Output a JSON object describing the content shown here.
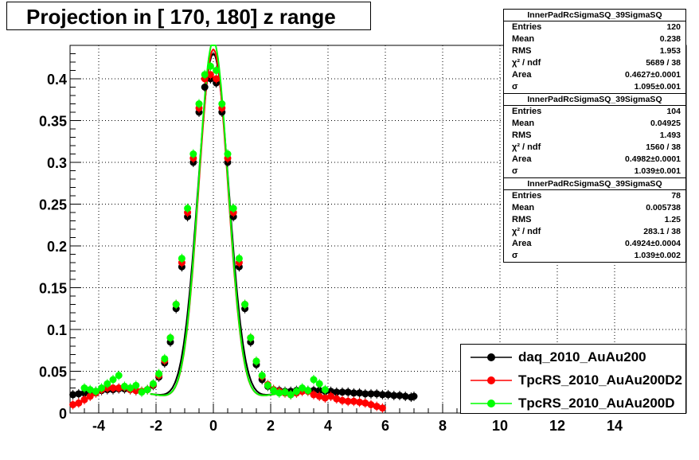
{
  "chart_data": {
    "type": "scatter",
    "title": "Projection in [ 170, 180] z range",
    "xlim": [
      -5,
      16.5
    ],
    "ylim": [
      0,
      0.44
    ],
    "x_major_ticks": [
      -4,
      -2,
      0,
      2,
      4,
      6,
      8,
      10,
      12,
      14
    ],
    "x_tick_labels": [
      "-4",
      "-2",
      "0",
      "2",
      "4",
      "6",
      "8",
      "10",
      "12",
      "14"
    ],
    "y_major_ticks": [
      0,
      0.05,
      0.1,
      0.15,
      0.2,
      0.25,
      0.3,
      0.35,
      0.4
    ],
    "y_tick_labels": [
      "0",
      "0.05",
      "0.1",
      "0.15",
      "0.2",
      "0.25",
      "0.3",
      "0.35",
      "0.4"
    ],
    "grid": true,
    "legend_position": "bottom-right",
    "series": [
      {
        "name": "daq_2010_AuAu200",
        "color": "#000000",
        "x": [
          -4.9,
          -4.7,
          -4.5,
          -4.3,
          -4.1,
          -3.9,
          -3.7,
          -3.5,
          -3.3,
          -3.1,
          -2.9,
          -2.7,
          -2.5,
          -2.3,
          -2.1,
          -1.9,
          -1.7,
          -1.5,
          -1.3,
          -1.1,
          -0.9,
          -0.7,
          -0.5,
          -0.3,
          -0.1,
          0.1,
          0.3,
          0.5,
          0.7,
          0.9,
          1.1,
          1.3,
          1.5,
          1.7,
          1.9,
          2.1,
          2.3,
          2.5,
          2.7,
          2.9,
          3.1,
          3.3,
          3.5,
          3.7,
          3.9,
          4.1,
          4.3,
          4.5,
          4.7,
          4.9,
          5.1,
          5.3,
          5.5,
          5.7,
          5.9,
          6.1,
          6.3,
          6.5,
          6.7,
          6.9,
          7.0
        ],
        "y": [
          0.022,
          0.023,
          0.024,
          0.025,
          0.026,
          0.027,
          0.028,
          0.028,
          0.029,
          0.029,
          0.028,
          0.027,
          0.026,
          0.028,
          0.033,
          0.043,
          0.06,
          0.085,
          0.125,
          0.175,
          0.235,
          0.3,
          0.36,
          0.39,
          0.4,
          0.395,
          0.36,
          0.3,
          0.235,
          0.175,
          0.125,
          0.085,
          0.058,
          0.04,
          0.032,
          0.028,
          0.027,
          0.026,
          0.026,
          0.027,
          0.027,
          0.027,
          0.027,
          0.027,
          0.026,
          0.026,
          0.025,
          0.025,
          0.025,
          0.024,
          0.024,
          0.023,
          0.023,
          0.023,
          0.022,
          0.022,
          0.021,
          0.021,
          0.02,
          0.019,
          0.02
        ]
      },
      {
        "name": "TpcRS_2010_AuAu200D2",
        "color": "#ff0000",
        "x": [
          -4.9,
          -4.7,
          -4.5,
          -4.3,
          -4.1,
          -3.9,
          -3.7,
          -3.5,
          -3.3,
          -3.1,
          -2.9,
          -2.7,
          -2.5,
          -2.3,
          -2.1,
          -1.9,
          -1.7,
          -1.5,
          -1.3,
          -1.1,
          -0.9,
          -0.7,
          -0.5,
          -0.3,
          -0.1,
          0.1,
          0.3,
          0.5,
          0.7,
          0.9,
          1.1,
          1.3,
          1.5,
          1.7,
          1.9,
          2.1,
          2.3,
          2.5,
          2.7,
          2.9,
          3.1,
          3.3,
          3.5,
          3.7,
          3.9,
          4.1,
          4.3,
          4.5,
          4.7,
          4.9,
          5.1,
          5.3,
          5.5,
          5.7,
          5.9
        ],
        "y": [
          0.01,
          0.012,
          0.016,
          0.02,
          0.024,
          0.028,
          0.03,
          0.03,
          0.03,
          0.031,
          0.028,
          0.027,
          0.026,
          0.028,
          0.034,
          0.045,
          0.063,
          0.09,
          0.13,
          0.18,
          0.24,
          0.305,
          0.365,
          0.4,
          0.405,
          0.4,
          0.365,
          0.305,
          0.24,
          0.18,
          0.13,
          0.09,
          0.062,
          0.044,
          0.034,
          0.028,
          0.026,
          0.024,
          0.022,
          0.024,
          0.026,
          0.026,
          0.022,
          0.02,
          0.018,
          0.02,
          0.017,
          0.015,
          0.014,
          0.014,
          0.013,
          0.012,
          0.01,
          0.008,
          0.006
        ]
      },
      {
        "name": "TpcRS_2010_AuAu200D",
        "color": "#00ff00",
        "x": [
          -4.5,
          -4.3,
          -4.1,
          -3.9,
          -3.7,
          -3.5,
          -3.3,
          -3.1,
          -2.9,
          -2.7,
          -2.5,
          -2.3,
          -2.1,
          -1.9,
          -1.7,
          -1.5,
          -1.3,
          -1.1,
          -0.9,
          -0.7,
          -0.5,
          -0.3,
          -0.1,
          0.1,
          0.3,
          0.5,
          0.7,
          0.9,
          1.1,
          1.3,
          1.5,
          1.7,
          1.9,
          2.1,
          2.3,
          2.5,
          2.7,
          2.9,
          3.1,
          3.3,
          3.5,
          3.7,
          3.9
        ],
        "y": [
          0.03,
          0.028,
          0.026,
          0.03,
          0.035,
          0.04,
          0.045,
          0.032,
          0.03,
          0.033,
          0.025,
          0.028,
          0.035,
          0.047,
          0.065,
          0.09,
          0.13,
          0.185,
          0.245,
          0.31,
          0.37,
          0.405,
          0.415,
          0.41,
          0.37,
          0.31,
          0.245,
          0.185,
          0.13,
          0.09,
          0.062,
          0.045,
          0.033,
          0.027,
          0.024,
          0.025,
          0.022,
          0.026,
          0.03,
          0.027,
          0.04,
          0.035,
          0.028
        ]
      }
    ]
  },
  "stats_boxes": [
    {
      "name": "InnerPadRcSigmaSQ_39SigmaSQ",
      "entries": "120",
      "mean": "0.238",
      "rms": "1.953",
      "chi2ndf": "5689 / 38",
      "area": "0.4627±0.0001",
      "sigma": "1.095±0.001"
    },
    {
      "name": "InnerPadRcSigmaSQ_39SigmaSQ",
      "entries": "104",
      "mean": "0.04925",
      "rms": "1.493",
      "chi2ndf": "1560 / 38",
      "area": "0.4982±0.0001",
      "sigma": "1.039±0.001"
    },
    {
      "name": "InnerPadRcSigmaSQ_39SigmaSQ",
      "entries": "78",
      "mean": "0.005738",
      "rms": "1.25",
      "chi2ndf": "283.1 / 38",
      "area": "0.4924±0.0004",
      "sigma": "1.039±0.002"
    }
  ],
  "stats_labels": {
    "entries": "Entries",
    "mean": "Mean",
    "rms": "RMS",
    "chi2ndf": "χ² / ndf",
    "area": "Area",
    "sigma": "σ"
  },
  "legend": [
    {
      "label": "daq_2010_AuAu200",
      "color": "#000000"
    },
    {
      "label": "TpcRS_2010_AuAu200D2",
      "color": "#ff0000"
    },
    {
      "label": "TpcRS_2010_AuAu200D",
      "color": "#00ff00"
    }
  ]
}
